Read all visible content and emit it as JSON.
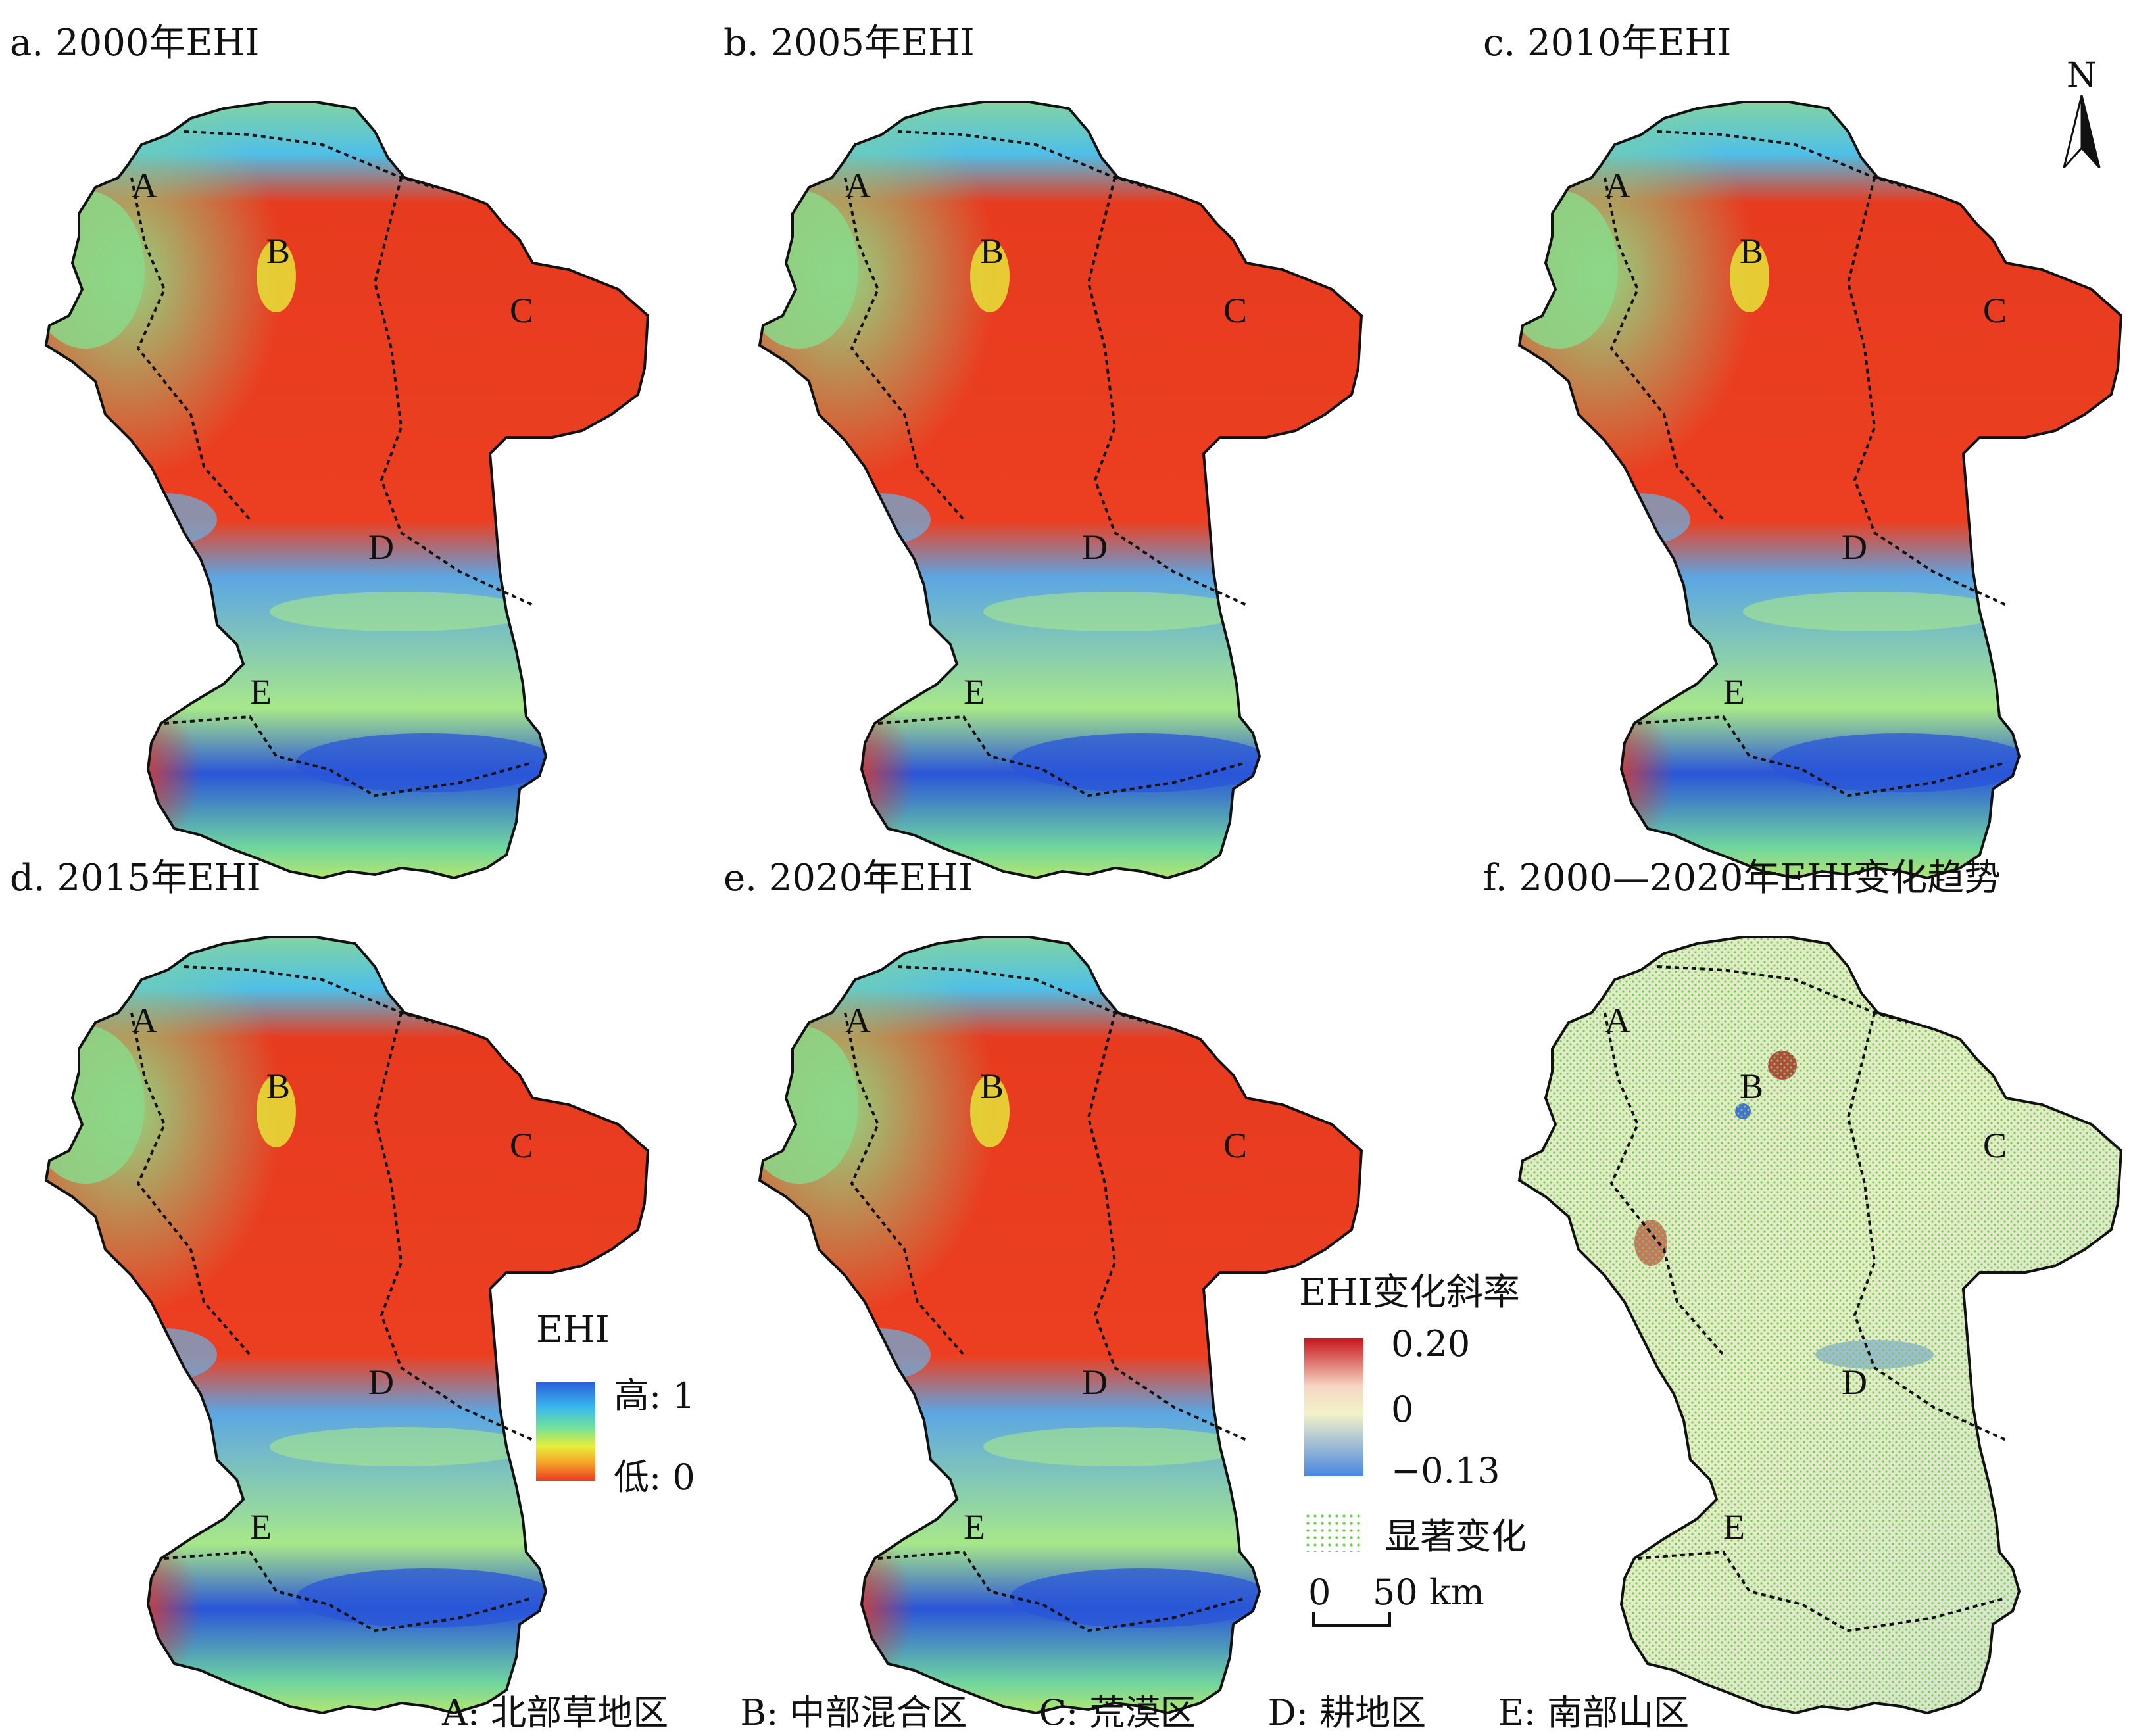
{
  "panels": [
    {
      "id": "a",
      "title": "a. 2000年EHI"
    },
    {
      "id": "b",
      "title": "b. 2005年EHI"
    },
    {
      "id": "c",
      "title": "c. 2010年EHI"
    },
    {
      "id": "d",
      "title": "d. 2015年EHI"
    },
    {
      "id": "e",
      "title": "e. 2020年EHI"
    },
    {
      "id": "f",
      "title": "f. 2000—2020年EHI变化趋势"
    }
  ],
  "region_labels": [
    "A",
    "B",
    "C",
    "D",
    "E"
  ],
  "north_arrow": {
    "label": "N"
  },
  "ehi_legend": {
    "title": "EHI",
    "high_label": "高: 1",
    "low_label": "低: 0",
    "colors": [
      "#2b5fd9",
      "#38b7ee",
      "#6fe0a0",
      "#e6ee3a",
      "#f7a22a",
      "#e83a20"
    ]
  },
  "slope_legend": {
    "title": "EHI变化斜率",
    "max_label": "0.20",
    "mid_label": "0",
    "min_label": "−0.13",
    "colors": [
      "#c8151b",
      "#f6d7c4",
      "#f2f2c8",
      "#4a86e0"
    ],
    "significance_label": "显著变化",
    "significance_color": "#6fd04a"
  },
  "scale_bar": {
    "start_label": "0",
    "end_label": "50 km"
  },
  "region_key": [
    "A: 北部草地区",
    "B: 中部混合区",
    "C: 荒漠区",
    "D: 耕地区",
    "E: 南部山区"
  ]
}
